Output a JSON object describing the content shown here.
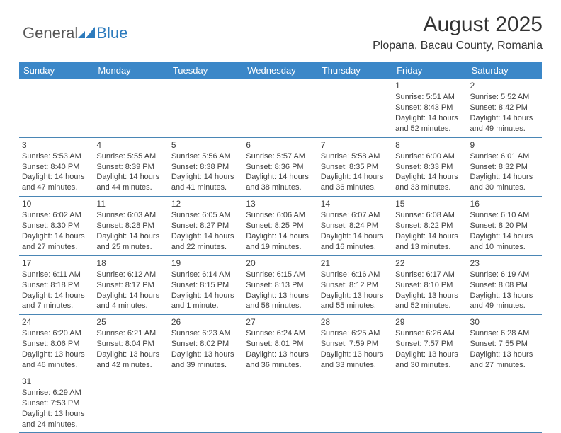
{
  "brand": {
    "part1": "General",
    "part2": "Blue"
  },
  "title": "August 2025",
  "location": "Plopana, Bacau County, Romania",
  "colors": {
    "header_bg": "#3b87c8",
    "header_text": "#ffffff",
    "cell_border": "#4a86b5",
    "text": "#404040",
    "logo_gray": "#555555",
    "logo_blue": "#2d7bbd"
  },
  "weekdays": [
    "Sunday",
    "Monday",
    "Tuesday",
    "Wednesday",
    "Thursday",
    "Friday",
    "Saturday"
  ],
  "weeks": [
    [
      null,
      null,
      null,
      null,
      null,
      {
        "d": "1",
        "sr": "5:51 AM",
        "ss": "8:43 PM",
        "dl1": "14 hours",
        "dl2": "and 52 minutes."
      },
      {
        "d": "2",
        "sr": "5:52 AM",
        "ss": "8:42 PM",
        "dl1": "14 hours",
        "dl2": "and 49 minutes."
      }
    ],
    [
      {
        "d": "3",
        "sr": "5:53 AM",
        "ss": "8:40 PM",
        "dl1": "14 hours",
        "dl2": "and 47 minutes."
      },
      {
        "d": "4",
        "sr": "5:55 AM",
        "ss": "8:39 PM",
        "dl1": "14 hours",
        "dl2": "and 44 minutes."
      },
      {
        "d": "5",
        "sr": "5:56 AM",
        "ss": "8:38 PM",
        "dl1": "14 hours",
        "dl2": "and 41 minutes."
      },
      {
        "d": "6",
        "sr": "5:57 AM",
        "ss": "8:36 PM",
        "dl1": "14 hours",
        "dl2": "and 38 minutes."
      },
      {
        "d": "7",
        "sr": "5:58 AM",
        "ss": "8:35 PM",
        "dl1": "14 hours",
        "dl2": "and 36 minutes."
      },
      {
        "d": "8",
        "sr": "6:00 AM",
        "ss": "8:33 PM",
        "dl1": "14 hours",
        "dl2": "and 33 minutes."
      },
      {
        "d": "9",
        "sr": "6:01 AM",
        "ss": "8:32 PM",
        "dl1": "14 hours",
        "dl2": "and 30 minutes."
      }
    ],
    [
      {
        "d": "10",
        "sr": "6:02 AM",
        "ss": "8:30 PM",
        "dl1": "14 hours",
        "dl2": "and 27 minutes."
      },
      {
        "d": "11",
        "sr": "6:03 AM",
        "ss": "8:28 PM",
        "dl1": "14 hours",
        "dl2": "and 25 minutes."
      },
      {
        "d": "12",
        "sr": "6:05 AM",
        "ss": "8:27 PM",
        "dl1": "14 hours",
        "dl2": "and 22 minutes."
      },
      {
        "d": "13",
        "sr": "6:06 AM",
        "ss": "8:25 PM",
        "dl1": "14 hours",
        "dl2": "and 19 minutes."
      },
      {
        "d": "14",
        "sr": "6:07 AM",
        "ss": "8:24 PM",
        "dl1": "14 hours",
        "dl2": "and 16 minutes."
      },
      {
        "d": "15",
        "sr": "6:08 AM",
        "ss": "8:22 PM",
        "dl1": "14 hours",
        "dl2": "and 13 minutes."
      },
      {
        "d": "16",
        "sr": "6:10 AM",
        "ss": "8:20 PM",
        "dl1": "14 hours",
        "dl2": "and 10 minutes."
      }
    ],
    [
      {
        "d": "17",
        "sr": "6:11 AM",
        "ss": "8:18 PM",
        "dl1": "14 hours",
        "dl2": "and 7 minutes."
      },
      {
        "d": "18",
        "sr": "6:12 AM",
        "ss": "8:17 PM",
        "dl1": "14 hours",
        "dl2": "and 4 minutes."
      },
      {
        "d": "19",
        "sr": "6:14 AM",
        "ss": "8:15 PM",
        "dl1": "14 hours",
        "dl2": "and 1 minute."
      },
      {
        "d": "20",
        "sr": "6:15 AM",
        "ss": "8:13 PM",
        "dl1": "13 hours",
        "dl2": "and 58 minutes."
      },
      {
        "d": "21",
        "sr": "6:16 AM",
        "ss": "8:12 PM",
        "dl1": "13 hours",
        "dl2": "and 55 minutes."
      },
      {
        "d": "22",
        "sr": "6:17 AM",
        "ss": "8:10 PM",
        "dl1": "13 hours",
        "dl2": "and 52 minutes."
      },
      {
        "d": "23",
        "sr": "6:19 AM",
        "ss": "8:08 PM",
        "dl1": "13 hours",
        "dl2": "and 49 minutes."
      }
    ],
    [
      {
        "d": "24",
        "sr": "6:20 AM",
        "ss": "8:06 PM",
        "dl1": "13 hours",
        "dl2": "and 46 minutes."
      },
      {
        "d": "25",
        "sr": "6:21 AM",
        "ss": "8:04 PM",
        "dl1": "13 hours",
        "dl2": "and 42 minutes."
      },
      {
        "d": "26",
        "sr": "6:23 AM",
        "ss": "8:02 PM",
        "dl1": "13 hours",
        "dl2": "and 39 minutes."
      },
      {
        "d": "27",
        "sr": "6:24 AM",
        "ss": "8:01 PM",
        "dl1": "13 hours",
        "dl2": "and 36 minutes."
      },
      {
        "d": "28",
        "sr": "6:25 AM",
        "ss": "7:59 PM",
        "dl1": "13 hours",
        "dl2": "and 33 minutes."
      },
      {
        "d": "29",
        "sr": "6:26 AM",
        "ss": "7:57 PM",
        "dl1": "13 hours",
        "dl2": "and 30 minutes."
      },
      {
        "d": "30",
        "sr": "6:28 AM",
        "ss": "7:55 PM",
        "dl1": "13 hours",
        "dl2": "and 27 minutes."
      }
    ],
    [
      {
        "d": "31",
        "sr": "6:29 AM",
        "ss": "7:53 PM",
        "dl1": "13 hours",
        "dl2": "and 24 minutes."
      },
      null,
      null,
      null,
      null,
      null,
      null
    ]
  ],
  "labels": {
    "sunrise": "Sunrise: ",
    "sunset": "Sunset: ",
    "daylight": "Daylight: "
  }
}
